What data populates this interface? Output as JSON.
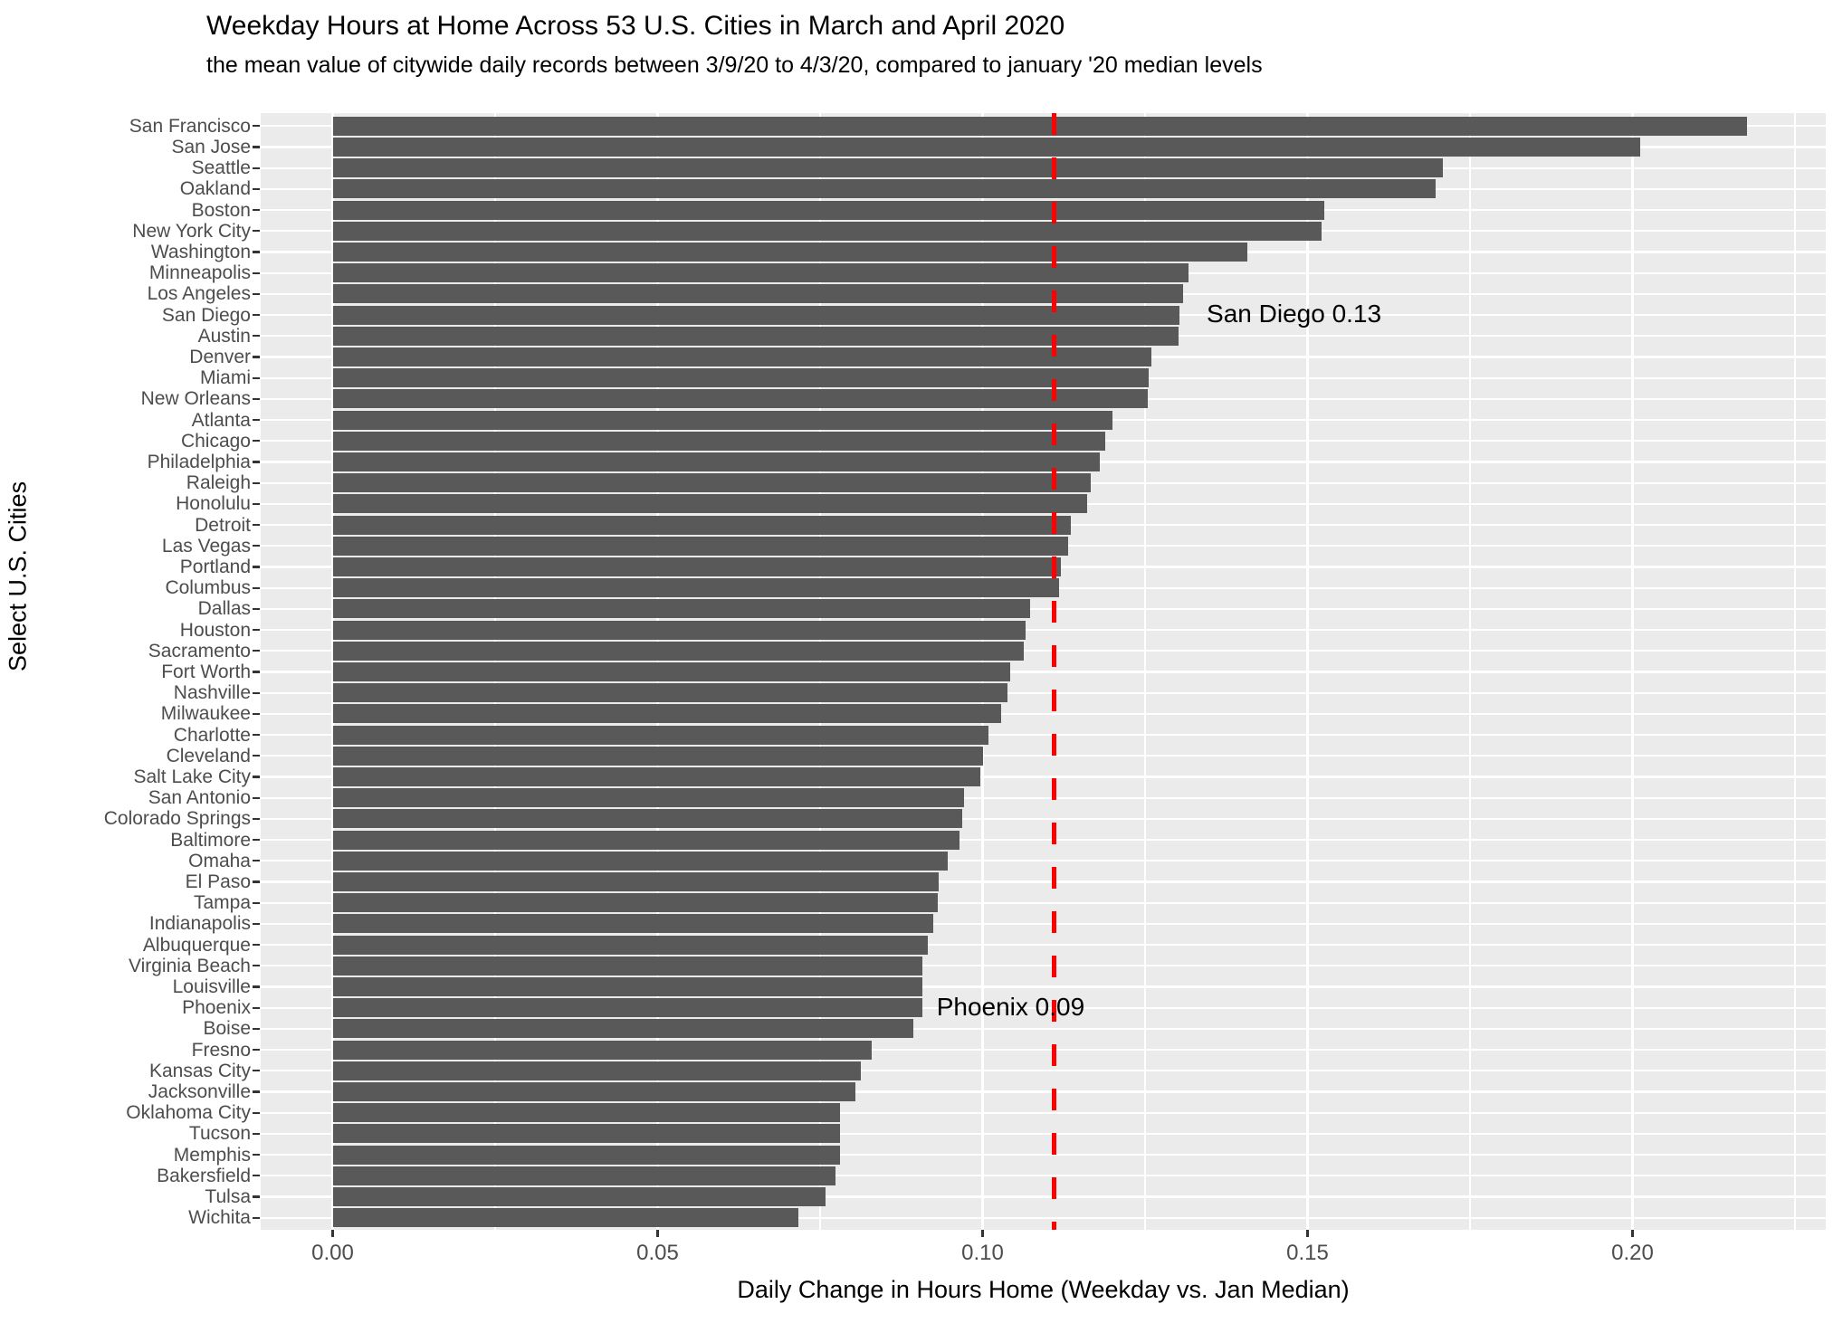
{
  "chart_data": {
    "type": "bar",
    "orientation": "horizontal",
    "title": "Weekday Hours at Home Across 53 U.S. Cities in March and April 2020",
    "subtitle": "the mean value of citywide daily records between 3/9/20 to 4/3/20, compared to january '20 median levels",
    "xlabel": "Daily Change in Hours Home (Weekday vs. Jan Median)",
    "ylabel": "Select U.S. Cities",
    "xlim": [
      -0.0115,
      0.2297
    ],
    "x_ticks": [
      0.0,
      0.05,
      0.1,
      0.15,
      0.2
    ],
    "x_tick_labels": [
      "0.00",
      "0.05",
      "0.10",
      "0.15",
      "0.20"
    ],
    "grid": true,
    "legend": false,
    "panel_bg": "#EBEBEB",
    "grid_color": "#FFFFFF",
    "bar_color": "#595959",
    "label_color": "#4D4D4D",
    "categories": [
      "San Francisco",
      "San Jose",
      "Seattle",
      "Oakland",
      "Boston",
      "New York City",
      "Washington",
      "Minneapolis",
      "Los Angeles",
      "San Diego",
      "Austin",
      "Denver",
      "Miami",
      "New Orleans",
      "Atlanta",
      "Chicago",
      "Philadelphia",
      "Raleigh",
      "Honolulu",
      "Detroit",
      "Las Vegas",
      "Portland",
      "Columbus",
      "Dallas",
      "Houston",
      "Sacramento",
      "Fort Worth",
      "Nashville",
      "Milwaukee",
      "Charlotte",
      "Cleveland",
      "Salt Lake City",
      "San Antonio",
      "Colorado Springs",
      "Baltimore",
      "Omaha",
      "El Paso",
      "Tampa",
      "Indianapolis",
      "Albuquerque",
      "Virginia Beach",
      "Louisville",
      "Phoenix",
      "Boise",
      "Fresno",
      "Kansas City",
      "Jacksonville",
      "Oklahoma City",
      "Tucson",
      "Memphis",
      "Bakersfield",
      "Tulsa",
      "Wichita"
    ],
    "values": [
      0.2176,
      0.2012,
      0.1708,
      0.1697,
      0.1526,
      0.1522,
      0.1408,
      0.1317,
      0.1309,
      0.1303,
      0.1302,
      0.126,
      0.1256,
      0.1254,
      0.12,
      0.1189,
      0.118,
      0.1167,
      0.1161,
      0.1136,
      0.1132,
      0.112,
      0.1117,
      0.1073,
      0.1066,
      0.1063,
      0.1042,
      0.1038,
      0.1028,
      0.1009,
      0.1,
      0.0996,
      0.0972,
      0.0968,
      0.0965,
      0.0947,
      0.0932,
      0.0931,
      0.0924,
      0.0916,
      0.0908,
      0.0908,
      0.0907,
      0.0893,
      0.083,
      0.0813,
      0.0804,
      0.0781,
      0.078,
      0.078,
      0.0773,
      0.0758,
      0.0717
    ],
    "reference_line": {
      "x": 0.111,
      "color": "#FF0000",
      "style": "dashed"
    },
    "annotations": [
      {
        "text": "San Diego 0.13",
        "city": "San Diego"
      },
      {
        "text": "Phoenix 0.09",
        "city": "Phoenix"
      }
    ]
  }
}
